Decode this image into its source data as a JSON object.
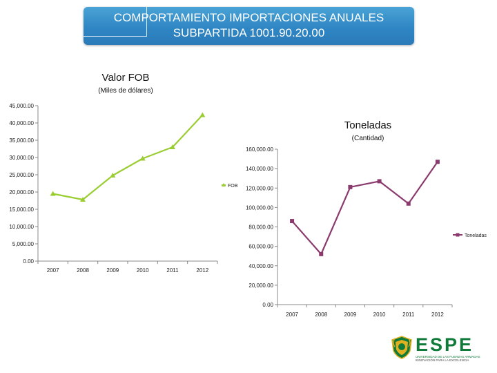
{
  "header": {
    "line1": "COMPORTAMIENTO IMPORTACIONES ANUALES",
    "line2": "SUBPARTIDA 1001.90.20.00"
  },
  "logo": {
    "text": "ESPE",
    "subtitle": "UNIVERSIDAD DE LAS FUERZAS ARMADAS",
    "tagline": "INNOVACIÓN PARA LA EXCELENCIA",
    "colors": {
      "green": "#0f7a3a",
      "gold": "#e0b020"
    }
  },
  "chart_data": [
    {
      "type": "line",
      "title": "Valor FOB",
      "subtitle": "(Miles de dólares)",
      "categories": [
        "2007",
        "2008",
        "2009",
        "2010",
        "2011",
        "2012"
      ],
      "series": [
        {
          "name": "FOB",
          "values": [
            19500,
            17800,
            24800,
            29700,
            33000,
            42300
          ],
          "color": "#9acd32",
          "marker": "triangle"
        }
      ],
      "ylim": [
        0,
        45000
      ],
      "yticks": [
        0,
        5000,
        10000,
        15000,
        20000,
        25000,
        30000,
        35000,
        40000,
        45000
      ],
      "ytick_labels": [
        "0.00",
        "5,000.00",
        "10,000.00",
        "15,000.00",
        "20,000.00",
        "25,000.00",
        "30,000.00",
        "35,000.00",
        "40,000.00",
        "45,000.00"
      ],
      "legend": "right",
      "grid": false
    },
    {
      "type": "line",
      "title": "Toneladas",
      "subtitle": "(Cantidad)",
      "categories": [
        "2007",
        "2008",
        "2009",
        "2010",
        "2011",
        "2012"
      ],
      "series": [
        {
          "name": "Toneladas",
          "values": [
            86000,
            52000,
            121000,
            127000,
            104000,
            147000
          ],
          "color": "#8b3a6e",
          "marker": "square"
        }
      ],
      "ylim": [
        0,
        160000
      ],
      "yticks": [
        0,
        20000,
        40000,
        60000,
        80000,
        100000,
        120000,
        140000,
        160000
      ],
      "ytick_labels": [
        "0.00",
        "20,000.00",
        "40,000.00",
        "60,000.00",
        "80,000.00",
        "100,000.00",
        "120,000.00",
        "140,000.00",
        "160,000.00"
      ],
      "legend": "right",
      "grid": false
    }
  ]
}
